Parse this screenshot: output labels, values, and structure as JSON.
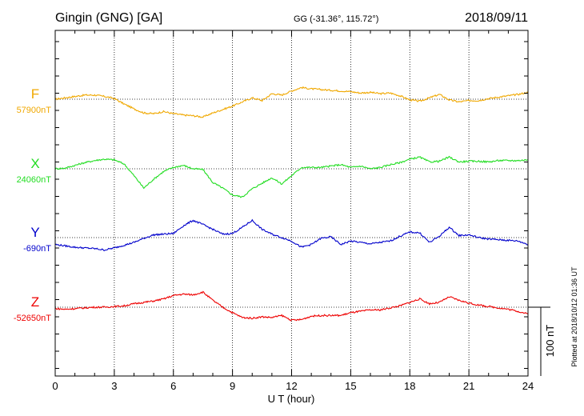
{
  "header": {
    "station": "Gingin (GNG)  [GA]",
    "coords": "GG (-31.36°, 115.72°)",
    "date": "2018/09/11"
  },
  "scale_label": "100 nT",
  "plotted_note": "Plotted at 2018/10/12 01:36 UT",
  "chart_data": {
    "type": "line",
    "xlabel": "U T (hour)",
    "xlim": [
      0,
      24
    ],
    "xticks": [
      0,
      3,
      6,
      9,
      12,
      15,
      18,
      21,
      24
    ],
    "xtick_labels": [
      "0",
      "3",
      "6",
      "9",
      "12",
      "15",
      "18",
      "21",
      "24"
    ],
    "grid": true,
    "series": [
      {
        "name": "F",
        "baseline_label": "57900nT",
        "baseline": 57900,
        "color": "#f0a800",
        "x": [
          0,
          0.5,
          1,
          1.5,
          2,
          2.5,
          3,
          3.5,
          4,
          4.5,
          5,
          5.5,
          6,
          6.5,
          7,
          7.5,
          8,
          8.5,
          9,
          9.5,
          10,
          10.5,
          11,
          11.5,
          12,
          12.5,
          13,
          13.5,
          14,
          14.5,
          15,
          15.5,
          16,
          16.5,
          17,
          17.5,
          18,
          18.5,
          19,
          19.5,
          20,
          20.5,
          21,
          21.5,
          22,
          22.5,
          23,
          23.5,
          24
        ],
        "values": [
          57900,
          57902,
          57904,
          57906,
          57906,
          57904,
          57901,
          57893,
          57886,
          57880,
          57879,
          57882,
          57879,
          57877,
          57876,
          57874,
          57880,
          57885,
          57890,
          57896,
          57902,
          57898,
          57908,
          57906,
          57912,
          57917,
          57915,
          57914,
          57913,
          57912,
          57911,
          57909,
          57910,
          57908,
          57909,
          57905,
          57899,
          57897,
          57902,
          57907,
          57899,
          57896,
          57898,
          57898,
          57901,
          57903,
          57905,
          57907,
          57910
        ]
      },
      {
        "name": "X",
        "baseline_label": "24060nT",
        "baseline": 24060,
        "color": "#22dd22",
        "x": [
          0,
          0.5,
          1,
          1.5,
          2,
          2.5,
          3,
          3.5,
          4,
          4.5,
          5,
          5.5,
          6,
          6.5,
          7,
          7.5,
          8,
          8.5,
          9,
          9.5,
          10,
          10.5,
          11,
          11.5,
          12,
          12.5,
          13,
          13.5,
          14,
          14.5,
          15,
          15.5,
          16,
          16.5,
          17,
          17.5,
          18,
          18.5,
          19,
          19.5,
          20,
          20.5,
          21,
          21.5,
          22,
          22.5,
          23,
          23.5,
          24
        ],
        "values": [
          24060,
          24061,
          24065,
          24069,
          24072,
          24074,
          24073,
          24067,
          24050,
          24032,
          24045,
          24056,
          24062,
          24065,
          24060,
          24059,
          24040,
          24032,
          24022,
          24019,
          24031,
          24039,
          24047,
          24038,
          24050,
          24062,
          24062,
          24062,
          24064,
          24066,
          24062,
          24064,
          24060,
          24062,
          24066,
          24069,
          24074,
          24077,
          24070,
          24071,
          24077,
          24070,
          24071,
          24071,
          24070,
          24072,
          24072,
          24072,
          24073
        ]
      },
      {
        "name": "Y",
        "baseline_label": "-690nT",
        "baseline": -690,
        "color": "#0000cc",
        "x": [
          0,
          0.5,
          1,
          1.5,
          2,
          2.5,
          3,
          3.5,
          4,
          4.5,
          5,
          5.5,
          6,
          6.5,
          7,
          7.5,
          8,
          8.5,
          9,
          9.5,
          10,
          10.5,
          11,
          11.5,
          12,
          12.5,
          13,
          13.5,
          14,
          14.5,
          15,
          15.5,
          16,
          16.5,
          17,
          17.5,
          18,
          18.5,
          19,
          19.5,
          20,
          20.5,
          21,
          21.5,
          22,
          22.5,
          23,
          23.5,
          24
        ],
        "values": [
          -700,
          -702,
          -704,
          -705,
          -706,
          -708,
          -705,
          -701,
          -697,
          -691,
          -686,
          -685,
          -684,
          -673,
          -665,
          -671,
          -678,
          -685,
          -684,
          -675,
          -665,
          -678,
          -685,
          -690,
          -695,
          -704,
          -700,
          -691,
          -689,
          -700,
          -695,
          -697,
          -699,
          -697,
          -695,
          -688,
          -682,
          -683,
          -697,
          -688,
          -675,
          -687,
          -686,
          -690,
          -692,
          -693,
          -694,
          -695,
          -700
        ]
      },
      {
        "name": "Z",
        "baseline_label": "-52650nT",
        "baseline": -52650,
        "color": "#ee0000",
        "x": [
          0,
          0.5,
          1,
          1.5,
          2,
          2.5,
          3,
          3.5,
          4,
          4.5,
          5,
          5.5,
          6,
          6.5,
          7,
          7.5,
          8,
          8.5,
          9,
          9.5,
          10,
          10.5,
          11,
          11.5,
          12,
          12.5,
          13,
          13.5,
          14,
          14.5,
          15,
          15.5,
          16,
          16.5,
          17,
          17.5,
          18,
          18.5,
          19,
          19.5,
          20,
          20.5,
          21,
          21.5,
          22,
          22.5,
          23,
          23.5,
          24
        ],
        "values": [
          -52652,
          -52653,
          -52652,
          -52651,
          -52650,
          -52650,
          -52649,
          -52648,
          -52645,
          -52643,
          -52641,
          -52638,
          -52633,
          -52631,
          -52632,
          -52628,
          -52640,
          -52650,
          -52658,
          -52665,
          -52666,
          -52664,
          -52665,
          -52662,
          -52669,
          -52668,
          -52663,
          -52662,
          -52662,
          -52662,
          -52658,
          -52656,
          -52654,
          -52654,
          -52651,
          -52648,
          -52643,
          -52638,
          -52645,
          -52643,
          -52635,
          -52640,
          -52644,
          -52647,
          -52649,
          -52651,
          -52653,
          -52656,
          -52660
        ]
      }
    ]
  }
}
